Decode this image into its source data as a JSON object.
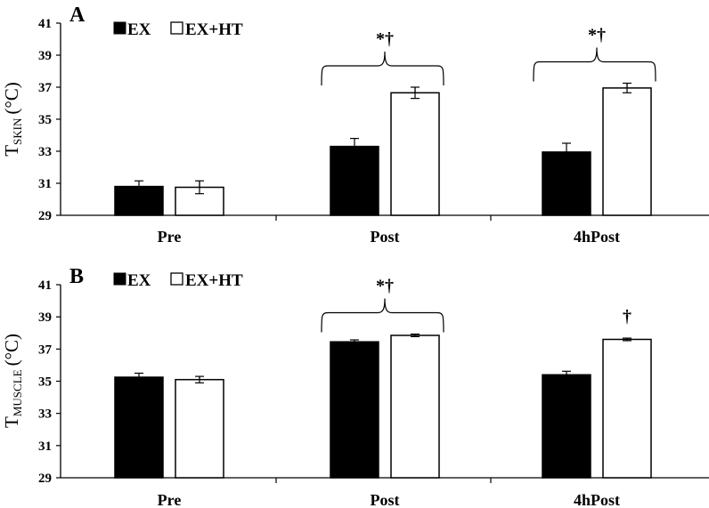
{
  "chart_data": [
    {
      "type": "bar",
      "panel": "A",
      "ylabel": {
        "main": "T",
        "sub": "SKIN",
        "unit": "(°C)"
      },
      "ylim": [
        29,
        41
      ],
      "yticks": [
        "29",
        "31",
        "33",
        "35",
        "37",
        "39",
        "41"
      ],
      "categories": [
        "Pre",
        "Post",
        "4hPost"
      ],
      "legend_placement": "top-left",
      "series": [
        {
          "name": "EX",
          "color": "#000000",
          "values": [
            30.8,
            33.3,
            32.95
          ],
          "errors": [
            0.35,
            0.5,
            0.55
          ]
        },
        {
          "name": "EX+HT",
          "color": "#ffffff",
          "values": [
            30.75,
            36.65,
            36.95
          ],
          "errors": [
            0.4,
            0.35,
            0.3
          ]
        }
      ],
      "annotations": [
        {
          "category": "Post",
          "text": "*†",
          "bracket": true
        },
        {
          "category": "4hPost",
          "text": "*†",
          "bracket": true
        }
      ]
    },
    {
      "type": "bar",
      "panel": "B",
      "ylabel": {
        "main": "T",
        "sub": "MUSCLE",
        "unit": "(°C)"
      },
      "ylim": [
        29,
        41
      ],
      "yticks": [
        "29",
        "31",
        "33",
        "35",
        "37",
        "39",
        "41"
      ],
      "categories": [
        "Pre",
        "Post",
        "4hPost"
      ],
      "legend_placement": "top-left",
      "series": [
        {
          "name": "EX",
          "color": "#000000",
          "values": [
            35.25,
            37.45,
            35.4
          ],
          "errors": [
            0.25,
            0.12,
            0.22
          ]
        },
        {
          "name": "EX+HT",
          "color": "#ffffff",
          "values": [
            35.1,
            37.85,
            37.6
          ],
          "errors": [
            0.2,
            0.08,
            0.08
          ]
        }
      ],
      "annotations": [
        {
          "category": "Post",
          "text": "*†",
          "bracket": true
        },
        {
          "category": "4hPost",
          "text": "†",
          "bracket": false
        }
      ]
    }
  ]
}
